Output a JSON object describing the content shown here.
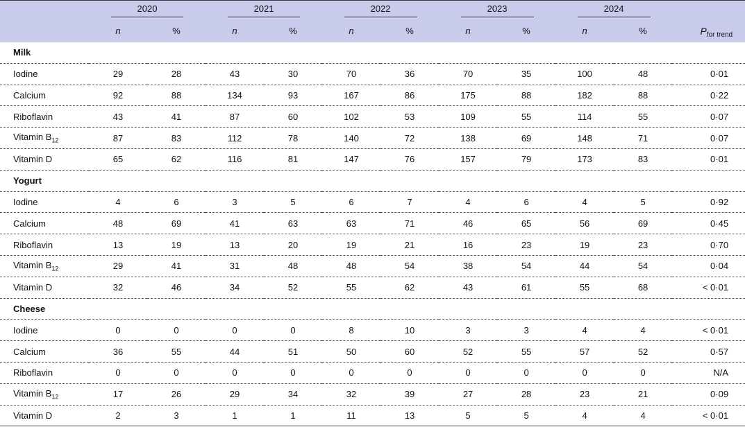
{
  "header": {
    "years": [
      "2020",
      "2021",
      "2022",
      "2023",
      "2024"
    ],
    "n_label": "n",
    "pct_label": "%",
    "p_label": "P",
    "p_sub": "for trend"
  },
  "sections": [
    {
      "title": "Milk",
      "rows": [
        {
          "label": "Iodine",
          "label_sub": "",
          "values": [
            "29",
            "28",
            "43",
            "30",
            "70",
            "36",
            "70",
            "35",
            "100",
            "48"
          ],
          "p": "0·01"
        },
        {
          "label": "Calcium",
          "label_sub": "",
          "values": [
            "92",
            "88",
            "134",
            "93",
            "167",
            "86",
            "175",
            "88",
            "182",
            "88"
          ],
          "p": "0·22"
        },
        {
          "label": "Riboflavin",
          "label_sub": "",
          "values": [
            "43",
            "41",
            "87",
            "60",
            "102",
            "53",
            "109",
            "55",
            "114",
            "55"
          ],
          "p": "0·07"
        },
        {
          "label": "Vitamin B",
          "label_sub": "12",
          "values": [
            "87",
            "83",
            "112",
            "78",
            "140",
            "72",
            "138",
            "69",
            "148",
            "71"
          ],
          "p": "0·07"
        },
        {
          "label": "Vitamin D",
          "label_sub": "",
          "values": [
            "65",
            "62",
            "116",
            "81",
            "147",
            "76",
            "157",
            "79",
            "173",
            "83"
          ],
          "p": "0·01"
        }
      ]
    },
    {
      "title": "Yogurt",
      "rows": [
        {
          "label": "Iodine",
          "label_sub": "",
          "values": [
            "4",
            "6",
            "3",
            "5",
            "6",
            "7",
            "4",
            "6",
            "4",
            "5"
          ],
          "p": "0·92"
        },
        {
          "label": "Calcium",
          "label_sub": "",
          "values": [
            "48",
            "69",
            "41",
            "63",
            "63",
            "71",
            "46",
            "65",
            "56",
            "69"
          ],
          "p": "0·45"
        },
        {
          "label": "Riboflavin",
          "label_sub": "",
          "values": [
            "13",
            "19",
            "13",
            "20",
            "19",
            "21",
            "16",
            "23",
            "19",
            "23"
          ],
          "p": "0·70"
        },
        {
          "label": "Vitamin B",
          "label_sub": "12",
          "values": [
            "29",
            "41",
            "31",
            "48",
            "48",
            "54",
            "38",
            "54",
            "44",
            "54"
          ],
          "p": "0·04"
        },
        {
          "label": "Vitamin D",
          "label_sub": "",
          "values": [
            "32",
            "46",
            "34",
            "52",
            "55",
            "62",
            "43",
            "61",
            "55",
            "68"
          ],
          "p": "< 0·01"
        }
      ]
    },
    {
      "title": "Cheese",
      "rows": [
        {
          "label": "Iodine",
          "label_sub": "",
          "values": [
            "0",
            "0",
            "0",
            "0",
            "8",
            "10",
            "3",
            "3",
            "4",
            "4"
          ],
          "p": "< 0·01"
        },
        {
          "label": "Calcium",
          "label_sub": "",
          "values": [
            "36",
            "55",
            "44",
            "51",
            "50",
            "60",
            "52",
            "55",
            "57",
            "52"
          ],
          "p": "0·57"
        },
        {
          "label": "Riboflavin",
          "label_sub": "",
          "values": [
            "0",
            "0",
            "0",
            "0",
            "0",
            "0",
            "0",
            "0",
            "0",
            "0"
          ],
          "p": "N/A"
        },
        {
          "label": "Vitamin B",
          "label_sub": "12",
          "values": [
            "17",
            "26",
            "29",
            "34",
            "32",
            "39",
            "27",
            "28",
            "23",
            "21"
          ],
          "p": "0·09"
        },
        {
          "label": "Vitamin D",
          "label_sub": "",
          "values": [
            "2",
            "3",
            "1",
            "1",
            "11",
            "13",
            "5",
            "5",
            "4",
            "4"
          ],
          "p": "< 0·01"
        }
      ]
    }
  ]
}
